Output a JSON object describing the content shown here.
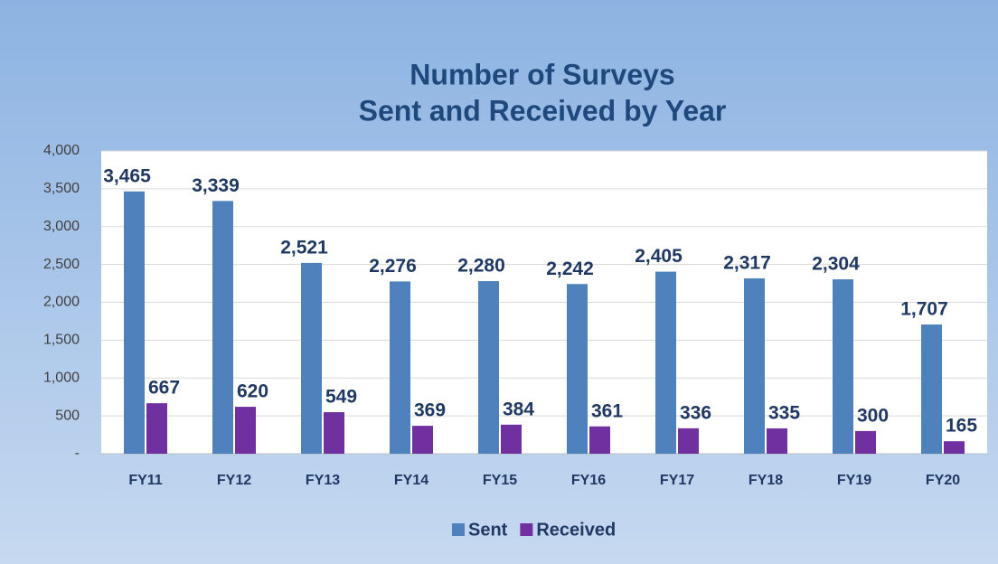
{
  "chart_data": {
    "type": "bar",
    "title": [
      "Number of Surveys",
      "Sent and Received by Year"
    ],
    "categories": [
      "FY11",
      "FY12",
      "FY13",
      "FY14",
      "FY15",
      "FY16",
      "FY17",
      "FY18",
      "FY19",
      "FY20"
    ],
    "series": [
      {
        "name": "Sent",
        "color": "#4f81bd",
        "values": [
          3465,
          3339,
          2521,
          2276,
          2280,
          2242,
          2405,
          2317,
          2304,
          1707
        ],
        "value_labels": [
          "3,465",
          "3,339",
          "2,521",
          "2,276",
          "2,280",
          "2,242",
          "2,405",
          "2,317",
          "2,304",
          "1,707"
        ]
      },
      {
        "name": "Received",
        "color": "#7030a0",
        "values": [
          667,
          620,
          549,
          369,
          384,
          361,
          336,
          335,
          300,
          165
        ]
      }
    ],
    "ylim": [
      0,
      4000
    ],
    "yticks": [
      {
        "value": 0,
        "label": "-"
      },
      500,
      {
        "value": 1000,
        "label": "1,000"
      },
      {
        "value": 1500,
        "label": "1,500"
      },
      {
        "value": 2000,
        "label": "2,000"
      },
      {
        "value": 2500,
        "label": "2,500"
      },
      {
        "value": 3000,
        "label": "3,000"
      },
      {
        "value": 3500,
        "label": "3,500"
      },
      {
        "value": 4000,
        "label": "4,000"
      }
    ],
    "grid": true,
    "legend": "bottom"
  }
}
